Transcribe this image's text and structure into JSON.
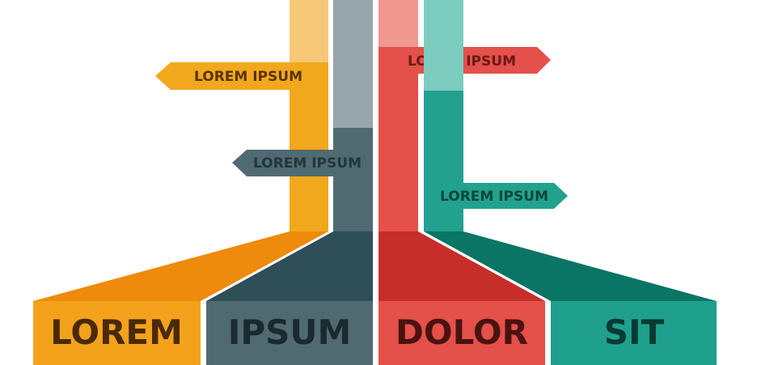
{
  "columns": [
    {
      "label": "LOREM",
      "flag_label": "LOREM IPSUM",
      "colors": {
        "top": "#F6C877",
        "pole": "#F2A81D",
        "ramp": "#EE8A0C",
        "base": "#F4A21C",
        "text": "#4A2A05",
        "flag_text": "#5A3303"
      }
    },
    {
      "label": "IPSUM",
      "flag_label": "LOREM IPSUM",
      "colors": {
        "top": "#97A5AC",
        "pole": "#506A72",
        "ramp": "#2F4F58",
        "base": "#506A72",
        "text": "#1A2A2E",
        "flag_text": "#22363C"
      }
    },
    {
      "label": "DOLOR",
      "flag_label": "LOREM IPSUM",
      "colors": {
        "top": "#F0978F",
        "pole": "#E4504A",
        "ramp": "#C62E2A",
        "base": "#E4504A",
        "text": "#4A1210",
        "flag_text": "#6A1A16"
      }
    },
    {
      "label": "SIT",
      "flag_label": "LOREM IPSUM",
      "colors": {
        "top": "#7CCCBF",
        "pole": "#22A18F",
        "ramp": "#0B7565",
        "base": "#1FA08D",
        "text": "#093A33",
        "flag_text": "#0C463D"
      }
    }
  ]
}
